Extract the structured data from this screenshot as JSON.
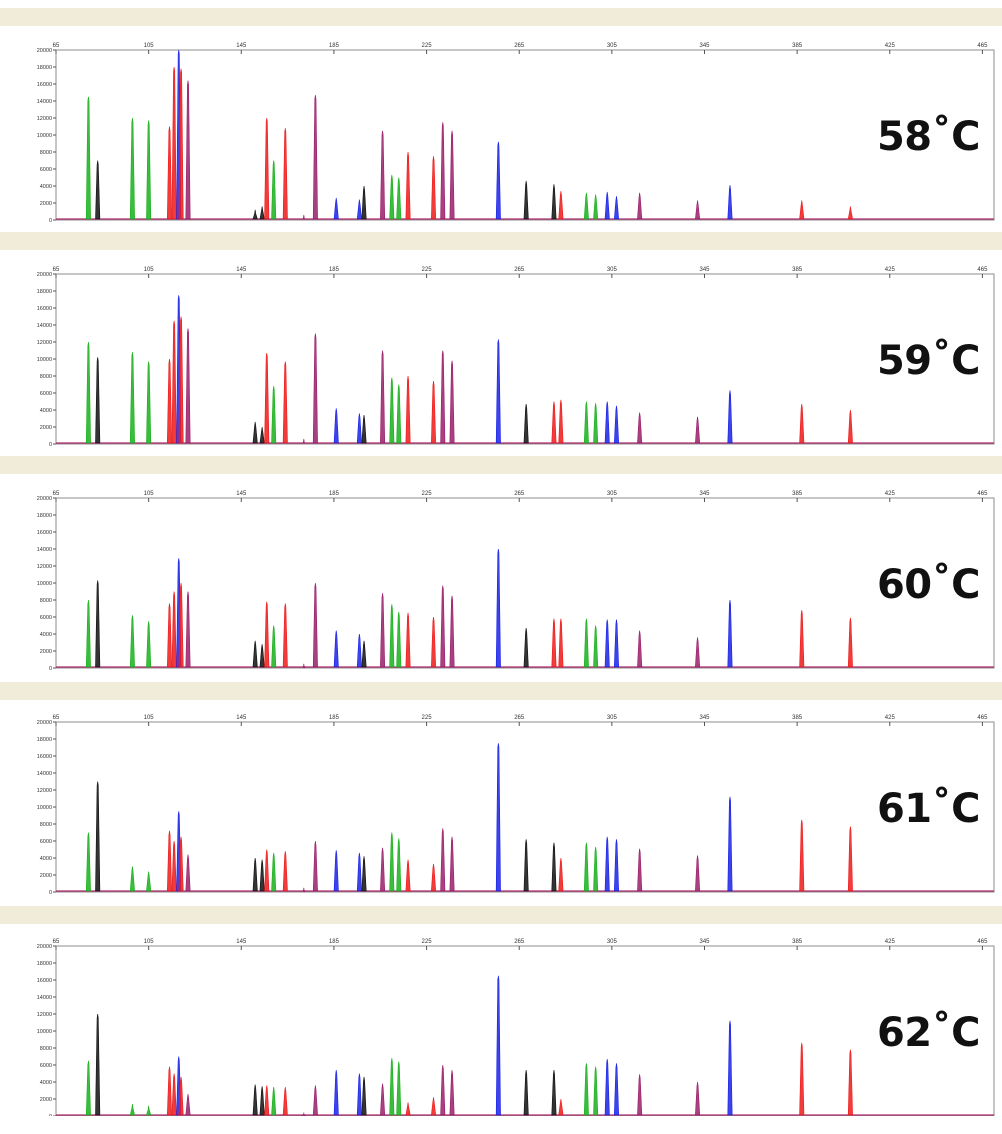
{
  "colors": {
    "green": "#19b01c",
    "black": "#111111",
    "red": "#ee1a1a",
    "maroon": "#9a1e6a",
    "blue": "#1a22e6",
    "band": "#f1ecda",
    "baseline": "#b02a6b"
  },
  "chart_data": [
    {
      "type": "line",
      "label": "58˚C",
      "x_ticks": [
        "65",
        "105",
        "145",
        "185",
        "225",
        "265",
        "305",
        "345",
        "385",
        "425",
        "465"
      ],
      "y_ticks": [
        "20000",
        "18000",
        "16000",
        "14000",
        "12000",
        "10000",
        "8000",
        "6000",
        "4000",
        "2000",
        "0"
      ],
      "xlim": [
        65,
        470
      ],
      "ylim": [
        0,
        20000
      ],
      "peaks": [
        {
          "x": 79,
          "h": 14500,
          "c": "green"
        },
        {
          "x": 83,
          "h": 7000,
          "c": "black"
        },
        {
          "x": 98,
          "h": 12000,
          "c": "green"
        },
        {
          "x": 105,
          "h": 11700,
          "c": "green"
        },
        {
          "x": 114,
          "h": 11000,
          "c": "red"
        },
        {
          "x": 116,
          "h": 18000,
          "c": "red"
        },
        {
          "x": 118,
          "h": 20000,
          "c": "blue"
        },
        {
          "x": 119,
          "h": 17800,
          "c": "red"
        },
        {
          "x": 122,
          "h": 16400,
          "c": "maroon"
        },
        {
          "x": 151,
          "h": 1200,
          "c": "black"
        },
        {
          "x": 154,
          "h": 1600,
          "c": "black"
        },
        {
          "x": 156,
          "h": 12000,
          "c": "red"
        },
        {
          "x": 159,
          "h": 7000,
          "c": "green"
        },
        {
          "x": 164,
          "h": 10800,
          "c": "red"
        },
        {
          "x": 172,
          "h": 600,
          "c": "maroon"
        },
        {
          "x": 177,
          "h": 14700,
          "c": "maroon"
        },
        {
          "x": 186,
          "h": 2600,
          "c": "blue"
        },
        {
          "x": 196,
          "h": 2400,
          "c": "blue"
        },
        {
          "x": 198,
          "h": 4000,
          "c": "black"
        },
        {
          "x": 206,
          "h": 10500,
          "c": "maroon"
        },
        {
          "x": 210,
          "h": 5300,
          "c": "green"
        },
        {
          "x": 213,
          "h": 5000,
          "c": "green"
        },
        {
          "x": 217,
          "h": 8000,
          "c": "red"
        },
        {
          "x": 228,
          "h": 7500,
          "c": "red"
        },
        {
          "x": 232,
          "h": 11500,
          "c": "maroon"
        },
        {
          "x": 236,
          "h": 10500,
          "c": "maroon"
        },
        {
          "x": 256,
          "h": 9200,
          "c": "blue"
        },
        {
          "x": 268,
          "h": 4600,
          "c": "black"
        },
        {
          "x": 280,
          "h": 4200,
          "c": "black"
        },
        {
          "x": 283,
          "h": 3400,
          "c": "red"
        },
        {
          "x": 294,
          "h": 3200,
          "c": "green"
        },
        {
          "x": 298,
          "h": 3000,
          "c": "green"
        },
        {
          "x": 303,
          "h": 3300,
          "c": "blue"
        },
        {
          "x": 307,
          "h": 2800,
          "c": "blue"
        },
        {
          "x": 317,
          "h": 3200,
          "c": "maroon"
        },
        {
          "x": 342,
          "h": 2300,
          "c": "maroon"
        },
        {
          "x": 356,
          "h": 4100,
          "c": "blue"
        },
        {
          "x": 387,
          "h": 2300,
          "c": "red"
        },
        {
          "x": 408,
          "h": 1600,
          "c": "red"
        }
      ]
    },
    {
      "type": "line",
      "label": "59˚C",
      "x_ticks": [
        "65",
        "105",
        "145",
        "185",
        "225",
        "265",
        "305",
        "345",
        "385",
        "425",
        "465"
      ],
      "y_ticks": [
        "20000",
        "18000",
        "16000",
        "14000",
        "12000",
        "10000",
        "8000",
        "6000",
        "4000",
        "2000",
        "0"
      ],
      "xlim": [
        65,
        470
      ],
      "ylim": [
        0,
        20000
      ],
      "peaks": [
        {
          "x": 79,
          "h": 12000,
          "c": "green"
        },
        {
          "x": 83,
          "h": 10200,
          "c": "black"
        },
        {
          "x": 98,
          "h": 10800,
          "c": "green"
        },
        {
          "x": 105,
          "h": 9700,
          "c": "green"
        },
        {
          "x": 114,
          "h": 10000,
          "c": "red"
        },
        {
          "x": 116,
          "h": 14500,
          "c": "red"
        },
        {
          "x": 118,
          "h": 17500,
          "c": "blue"
        },
        {
          "x": 119,
          "h": 15000,
          "c": "red"
        },
        {
          "x": 122,
          "h": 13600,
          "c": "maroon"
        },
        {
          "x": 151,
          "h": 2600,
          "c": "black"
        },
        {
          "x": 154,
          "h": 2000,
          "c": "black"
        },
        {
          "x": 156,
          "h": 10700,
          "c": "red"
        },
        {
          "x": 159,
          "h": 6800,
          "c": "green"
        },
        {
          "x": 164,
          "h": 9700,
          "c": "red"
        },
        {
          "x": 172,
          "h": 600,
          "c": "maroon"
        },
        {
          "x": 177,
          "h": 13000,
          "c": "maroon"
        },
        {
          "x": 186,
          "h": 4200,
          "c": "blue"
        },
        {
          "x": 196,
          "h": 3600,
          "c": "blue"
        },
        {
          "x": 198,
          "h": 3400,
          "c": "black"
        },
        {
          "x": 206,
          "h": 11000,
          "c": "maroon"
        },
        {
          "x": 210,
          "h": 7800,
          "c": "green"
        },
        {
          "x": 213,
          "h": 7000,
          "c": "green"
        },
        {
          "x": 217,
          "h": 8000,
          "c": "red"
        },
        {
          "x": 228,
          "h": 7400,
          "c": "red"
        },
        {
          "x": 232,
          "h": 11000,
          "c": "maroon"
        },
        {
          "x": 236,
          "h": 9800,
          "c": "maroon"
        },
        {
          "x": 256,
          "h": 12300,
          "c": "blue"
        },
        {
          "x": 268,
          "h": 4700,
          "c": "black"
        },
        {
          "x": 280,
          "h": 5000,
          "c": "red"
        },
        {
          "x": 283,
          "h": 5200,
          "c": "red"
        },
        {
          "x": 294,
          "h": 5000,
          "c": "green"
        },
        {
          "x": 298,
          "h": 4800,
          "c": "green"
        },
        {
          "x": 303,
          "h": 5000,
          "c": "blue"
        },
        {
          "x": 307,
          "h": 4500,
          "c": "blue"
        },
        {
          "x": 317,
          "h": 3700,
          "c": "maroon"
        },
        {
          "x": 342,
          "h": 3200,
          "c": "maroon"
        },
        {
          "x": 356,
          "h": 6300,
          "c": "blue"
        },
        {
          "x": 387,
          "h": 4700,
          "c": "red"
        },
        {
          "x": 408,
          "h": 4000,
          "c": "red"
        }
      ]
    },
    {
      "type": "line",
      "label": "60˚C",
      "x_ticks": [
        "65",
        "105",
        "145",
        "185",
        "225",
        "265",
        "305",
        "345",
        "385",
        "425",
        "465"
      ],
      "y_ticks": [
        "20000",
        "18000",
        "16000",
        "14000",
        "12000",
        "10000",
        "8000",
        "6000",
        "4000",
        "2000",
        "0"
      ],
      "xlim": [
        65,
        470
      ],
      "ylim": [
        0,
        20000
      ],
      "peaks": [
        {
          "x": 79,
          "h": 8000,
          "c": "green"
        },
        {
          "x": 83,
          "h": 10300,
          "c": "black"
        },
        {
          "x": 98,
          "h": 6200,
          "c": "green"
        },
        {
          "x": 105,
          "h": 5500,
          "c": "green"
        },
        {
          "x": 114,
          "h": 7600,
          "c": "red"
        },
        {
          "x": 116,
          "h": 9000,
          "c": "red"
        },
        {
          "x": 118,
          "h": 12900,
          "c": "blue"
        },
        {
          "x": 119,
          "h": 10000,
          "c": "red"
        },
        {
          "x": 122,
          "h": 9000,
          "c": "maroon"
        },
        {
          "x": 151,
          "h": 3200,
          "c": "black"
        },
        {
          "x": 154,
          "h": 2800,
          "c": "black"
        },
        {
          "x": 156,
          "h": 7800,
          "c": "red"
        },
        {
          "x": 159,
          "h": 5000,
          "c": "green"
        },
        {
          "x": 164,
          "h": 7600,
          "c": "red"
        },
        {
          "x": 172,
          "h": 500,
          "c": "maroon"
        },
        {
          "x": 177,
          "h": 10000,
          "c": "maroon"
        },
        {
          "x": 186,
          "h": 4400,
          "c": "blue"
        },
        {
          "x": 196,
          "h": 4000,
          "c": "blue"
        },
        {
          "x": 198,
          "h": 3200,
          "c": "black"
        },
        {
          "x": 206,
          "h": 8800,
          "c": "maroon"
        },
        {
          "x": 210,
          "h": 7500,
          "c": "green"
        },
        {
          "x": 213,
          "h": 6600,
          "c": "green"
        },
        {
          "x": 217,
          "h": 6500,
          "c": "red"
        },
        {
          "x": 228,
          "h": 6000,
          "c": "red"
        },
        {
          "x": 232,
          "h": 9700,
          "c": "maroon"
        },
        {
          "x": 236,
          "h": 8500,
          "c": "maroon"
        },
        {
          "x": 256,
          "h": 14000,
          "c": "blue"
        },
        {
          "x": 268,
          "h": 4700,
          "c": "black"
        },
        {
          "x": 280,
          "h": 5800,
          "c": "red"
        },
        {
          "x": 283,
          "h": 5800,
          "c": "red"
        },
        {
          "x": 294,
          "h": 5800,
          "c": "green"
        },
        {
          "x": 298,
          "h": 5000,
          "c": "green"
        },
        {
          "x": 303,
          "h": 5700,
          "c": "blue"
        },
        {
          "x": 307,
          "h": 5700,
          "c": "blue"
        },
        {
          "x": 317,
          "h": 4400,
          "c": "maroon"
        },
        {
          "x": 342,
          "h": 3600,
          "c": "maroon"
        },
        {
          "x": 356,
          "h": 8000,
          "c": "blue"
        },
        {
          "x": 387,
          "h": 6800,
          "c": "red"
        },
        {
          "x": 408,
          "h": 5900,
          "c": "red"
        }
      ]
    },
    {
      "type": "line",
      "label": "61˚C",
      "x_ticks": [
        "65",
        "105",
        "145",
        "185",
        "225",
        "265",
        "305",
        "345",
        "385",
        "425",
        "465"
      ],
      "y_ticks": [
        "20000",
        "18000",
        "16000",
        "14000",
        "12000",
        "10000",
        "8000",
        "6000",
        "4000",
        "2000",
        "0"
      ],
      "xlim": [
        65,
        470
      ],
      "ylim": [
        0,
        20000
      ],
      "peaks": [
        {
          "x": 79,
          "h": 7000,
          "c": "green"
        },
        {
          "x": 83,
          "h": 13000,
          "c": "black"
        },
        {
          "x": 98,
          "h": 3000,
          "c": "green"
        },
        {
          "x": 105,
          "h": 2400,
          "c": "green"
        },
        {
          "x": 114,
          "h": 7200,
          "c": "red"
        },
        {
          "x": 116,
          "h": 6000,
          "c": "red"
        },
        {
          "x": 118,
          "h": 9500,
          "c": "blue"
        },
        {
          "x": 119,
          "h": 6500,
          "c": "red"
        },
        {
          "x": 122,
          "h": 4400,
          "c": "maroon"
        },
        {
          "x": 151,
          "h": 4000,
          "c": "black"
        },
        {
          "x": 154,
          "h": 3800,
          "c": "black"
        },
        {
          "x": 156,
          "h": 5000,
          "c": "red"
        },
        {
          "x": 159,
          "h": 4600,
          "c": "green"
        },
        {
          "x": 164,
          "h": 4800,
          "c": "red"
        },
        {
          "x": 172,
          "h": 500,
          "c": "maroon"
        },
        {
          "x": 177,
          "h": 6000,
          "c": "maroon"
        },
        {
          "x": 186,
          "h": 4900,
          "c": "blue"
        },
        {
          "x": 196,
          "h": 4600,
          "c": "blue"
        },
        {
          "x": 198,
          "h": 4200,
          "c": "black"
        },
        {
          "x": 206,
          "h": 5200,
          "c": "maroon"
        },
        {
          "x": 210,
          "h": 7000,
          "c": "green"
        },
        {
          "x": 213,
          "h": 6300,
          "c": "green"
        },
        {
          "x": 217,
          "h": 3800,
          "c": "red"
        },
        {
          "x": 228,
          "h": 3300,
          "c": "red"
        },
        {
          "x": 232,
          "h": 7500,
          "c": "maroon"
        },
        {
          "x": 236,
          "h": 6500,
          "c": "maroon"
        },
        {
          "x": 256,
          "h": 17500,
          "c": "blue"
        },
        {
          "x": 268,
          "h": 6200,
          "c": "black"
        },
        {
          "x": 280,
          "h": 5800,
          "c": "black"
        },
        {
          "x": 283,
          "h": 4000,
          "c": "red"
        },
        {
          "x": 294,
          "h": 5800,
          "c": "green"
        },
        {
          "x": 298,
          "h": 5300,
          "c": "green"
        },
        {
          "x": 303,
          "h": 6500,
          "c": "blue"
        },
        {
          "x": 307,
          "h": 6200,
          "c": "blue"
        },
        {
          "x": 317,
          "h": 5100,
          "c": "maroon"
        },
        {
          "x": 342,
          "h": 4300,
          "c": "maroon"
        },
        {
          "x": 356,
          "h": 11200,
          "c": "blue"
        },
        {
          "x": 387,
          "h": 8500,
          "c": "red"
        },
        {
          "x": 408,
          "h": 7700,
          "c": "red"
        }
      ]
    },
    {
      "type": "line",
      "label": "62˚C",
      "x_ticks": [
        "65",
        "105",
        "145",
        "185",
        "225",
        "265",
        "305",
        "345",
        "385",
        "425",
        "465"
      ],
      "y_ticks": [
        "20000",
        "18000",
        "16000",
        "14000",
        "12000",
        "10000",
        "8000",
        "6000",
        "4000",
        "2000",
        "0"
      ],
      "xlim": [
        65,
        470
      ],
      "ylim": [
        0,
        20000
      ],
      "peaks": [
        {
          "x": 79,
          "h": 6500,
          "c": "green"
        },
        {
          "x": 83,
          "h": 12000,
          "c": "black"
        },
        {
          "x": 98,
          "h": 1400,
          "c": "green"
        },
        {
          "x": 105,
          "h": 1200,
          "c": "green"
        },
        {
          "x": 114,
          "h": 5800,
          "c": "red"
        },
        {
          "x": 116,
          "h": 5000,
          "c": "red"
        },
        {
          "x": 118,
          "h": 7000,
          "c": "blue"
        },
        {
          "x": 119,
          "h": 4600,
          "c": "red"
        },
        {
          "x": 122,
          "h": 2600,
          "c": "maroon"
        },
        {
          "x": 151,
          "h": 3700,
          "c": "black"
        },
        {
          "x": 154,
          "h": 3500,
          "c": "black"
        },
        {
          "x": 156,
          "h": 3600,
          "c": "red"
        },
        {
          "x": 159,
          "h": 3400,
          "c": "green"
        },
        {
          "x": 164,
          "h": 3400,
          "c": "red"
        },
        {
          "x": 172,
          "h": 400,
          "c": "maroon"
        },
        {
          "x": 177,
          "h": 3600,
          "c": "maroon"
        },
        {
          "x": 186,
          "h": 5400,
          "c": "blue"
        },
        {
          "x": 196,
          "h": 5000,
          "c": "blue"
        },
        {
          "x": 198,
          "h": 4600,
          "c": "black"
        },
        {
          "x": 206,
          "h": 3800,
          "c": "maroon"
        },
        {
          "x": 210,
          "h": 6800,
          "c": "green"
        },
        {
          "x": 213,
          "h": 6400,
          "c": "green"
        },
        {
          "x": 217,
          "h": 1600,
          "c": "red"
        },
        {
          "x": 228,
          "h": 2200,
          "c": "red"
        },
        {
          "x": 232,
          "h": 6000,
          "c": "maroon"
        },
        {
          "x": 236,
          "h": 5400,
          "c": "maroon"
        },
        {
          "x": 256,
          "h": 16500,
          "c": "blue"
        },
        {
          "x": 268,
          "h": 5400,
          "c": "black"
        },
        {
          "x": 280,
          "h": 5400,
          "c": "black"
        },
        {
          "x": 283,
          "h": 2000,
          "c": "red"
        },
        {
          "x": 294,
          "h": 6200,
          "c": "green"
        },
        {
          "x": 298,
          "h": 5800,
          "c": "green"
        },
        {
          "x": 303,
          "h": 6700,
          "c": "blue"
        },
        {
          "x": 307,
          "h": 6200,
          "c": "blue"
        },
        {
          "x": 317,
          "h": 4900,
          "c": "maroon"
        },
        {
          "x": 342,
          "h": 4000,
          "c": "maroon"
        },
        {
          "x": 356,
          "h": 11200,
          "c": "blue"
        },
        {
          "x": 387,
          "h": 8600,
          "c": "red"
        },
        {
          "x": 408,
          "h": 7800,
          "c": "red"
        }
      ]
    }
  ]
}
